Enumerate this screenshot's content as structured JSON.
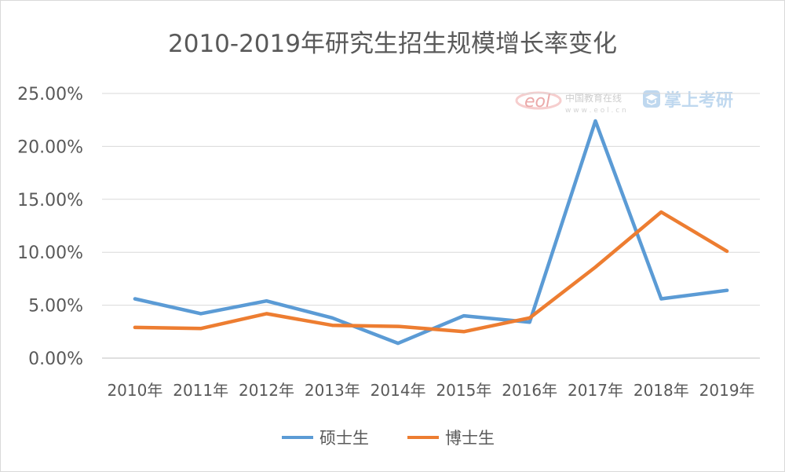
{
  "chart_data": {
    "type": "line",
    "title": "2010-2019年研究生招生规模增长率变化",
    "categories": [
      "2010年",
      "2011年",
      "2012年",
      "2013年",
      "2014年",
      "2015年",
      "2016年",
      "2017年",
      "2018年",
      "2019年"
    ],
    "y_ticks": [
      "0.00%",
      "5.00%",
      "10.00%",
      "15.00%",
      "20.00%",
      "25.00%"
    ],
    "ylim": [
      0,
      25
    ],
    "grid": true,
    "legend_position": "bottom",
    "series": [
      {
        "name": "硕士生",
        "color": "#5b9bd5",
        "values": [
          5.6,
          4.2,
          5.4,
          3.8,
          1.4,
          4.0,
          3.4,
          22.4,
          5.6,
          6.4
        ]
      },
      {
        "name": "博士生",
        "color": "#ed7d31",
        "values": [
          2.9,
          2.8,
          4.2,
          3.1,
          3.0,
          2.5,
          3.8,
          8.6,
          13.8,
          10.1
        ]
      }
    ]
  },
  "watermark": {
    "eol_logo_text": "eol",
    "eol_cn": "中国教育在线",
    "eol_url": "w w w . e o l . c n",
    "app_name": "掌上考研",
    "eol_icon": "eol-logo-icon",
    "app_icon": "graduation-cap-icon"
  }
}
